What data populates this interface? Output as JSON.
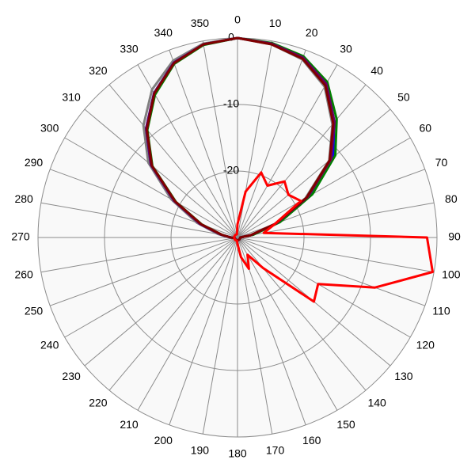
{
  "chart_data": {
    "type": "polar",
    "x": [
      0,
      10,
      20,
      30,
      40,
      50,
      60,
      70,
      80,
      90,
      100,
      110,
      120,
      130,
      140,
      150,
      160,
      170,
      180,
      190,
      200,
      210,
      220,
      230,
      240,
      250,
      260,
      270,
      280,
      290,
      300,
      310,
      320,
      330,
      340,
      350
    ],
    "xticks": [
      0,
      10,
      20,
      30,
      40,
      50,
      60,
      70,
      80,
      90,
      100,
      110,
      120,
      130,
      140,
      150,
      160,
      170,
      180,
      190,
      200,
      210,
      220,
      230,
      240,
      250,
      260,
      270,
      280,
      290,
      300,
      310,
      320,
      330,
      340,
      350
    ],
    "rlim": [
      -30,
      0
    ],
    "rticks": [
      0,
      -10,
      -20
    ],
    "grid": true,
    "series": [
      {
        "color": "#808080",
        "values": [
          0,
          -0.5,
          -1.5,
          -3.8,
          -7.8,
          -12,
          -18.2,
          -24,
          -28,
          -29.6,
          -29.6,
          -29.6,
          -29.6,
          -29.6,
          -29.6,
          -29.6,
          -29.6,
          -29.6,
          -29.6,
          -29.6,
          -29.6,
          -29.6,
          -29.6,
          -29.6,
          -29.6,
          -29.6,
          -29.6,
          -28.8,
          -27,
          -23.5,
          -18.5,
          -12.5,
          -8,
          -4.3,
          -1.7,
          -0.4
        ]
      },
      {
        "color": "#0000ff",
        "values": [
          0,
          -0.4,
          -1.3,
          -3.4,
          -7.4,
          -11.2,
          -17.5,
          -23.5,
          -27.8,
          -29.6,
          -29.6,
          -29.6,
          -29.6,
          -29.6,
          -29.6,
          -29.6,
          -29.6,
          -29.6,
          -29.6,
          -29.6,
          -29.6,
          -29.6,
          -29.6,
          -29.6,
          -29.6,
          -29.6,
          -29.6,
          -29,
          -27.5,
          -24,
          -19,
          -13,
          -8.6,
          -4.9,
          -2,
          -0.5
        ]
      },
      {
        "color": "#008000",
        "values": [
          0,
          -0.3,
          -1,
          -3,
          -6.8,
          -10.8,
          -17,
          -23.2,
          -27.6,
          -29.6,
          -29.6,
          -29.6,
          -29.6,
          -29.6,
          -29.6,
          -29.6,
          -29.6,
          -29.6,
          -29.6,
          -29.6,
          -29.6,
          -29.6,
          -29.6,
          -29.6,
          -29.6,
          -29.6,
          -29.6,
          -29,
          -27.6,
          -24.3,
          -19.3,
          -13.3,
          -8.9,
          -5.2,
          -2.2,
          -0.6
        ]
      },
      {
        "color": "#660066",
        "values": [
          0,
          -0.4,
          -1.2,
          -3.3,
          -7.3,
          -11.6,
          -17.8,
          -23.8,
          -27.9,
          -29.6,
          -29.6,
          -29.6,
          -29.6,
          -29.6,
          -29.6,
          -29.6,
          -29.6,
          -29.6,
          -29.6,
          -29.6,
          -29.6,
          -29.6,
          -29.6,
          -29.6,
          -29.6,
          -29.6,
          -29.6,
          -29,
          -27.5,
          -24,
          -19,
          -13,
          -8.6,
          -4.9,
          -2,
          -0.5
        ]
      },
      {
        "color": "#800000",
        "values": [
          0,
          -0.5,
          -1.4,
          -3.6,
          -7.6,
          -11.9,
          -18,
          -24,
          -28,
          -29.6,
          -29.6,
          -29.6,
          -29.6,
          -29.6,
          -29.6,
          -29.6,
          -29.6,
          -29.6,
          -29.6,
          -29.6,
          -29.6,
          -29.6,
          -29.6,
          -29.6,
          -29.6,
          -29.6,
          -29.6,
          -29,
          -27.6,
          -24.2,
          -19.2,
          -13.2,
          -8.8,
          -5,
          -2.1,
          -0.5
        ]
      },
      {
        "color": "#ff0000",
        "values": [
          -28,
          -23,
          -19.6,
          -21,
          -19,
          -20,
          -19,
          -24,
          -26,
          -1.5,
          -0.2,
          -8,
          -16,
          -15,
          -24,
          -27,
          -25,
          -27,
          -29,
          -29.5,
          -29.5,
          -29.5,
          -29.5,
          -29.5,
          -29.5,
          -29.5,
          -29.5,
          -29.5,
          -29.5,
          -29.5,
          -29.5,
          -29.5,
          -29.5,
          -29.5,
          -29.5,
          -29.5
        ]
      }
    ]
  }
}
